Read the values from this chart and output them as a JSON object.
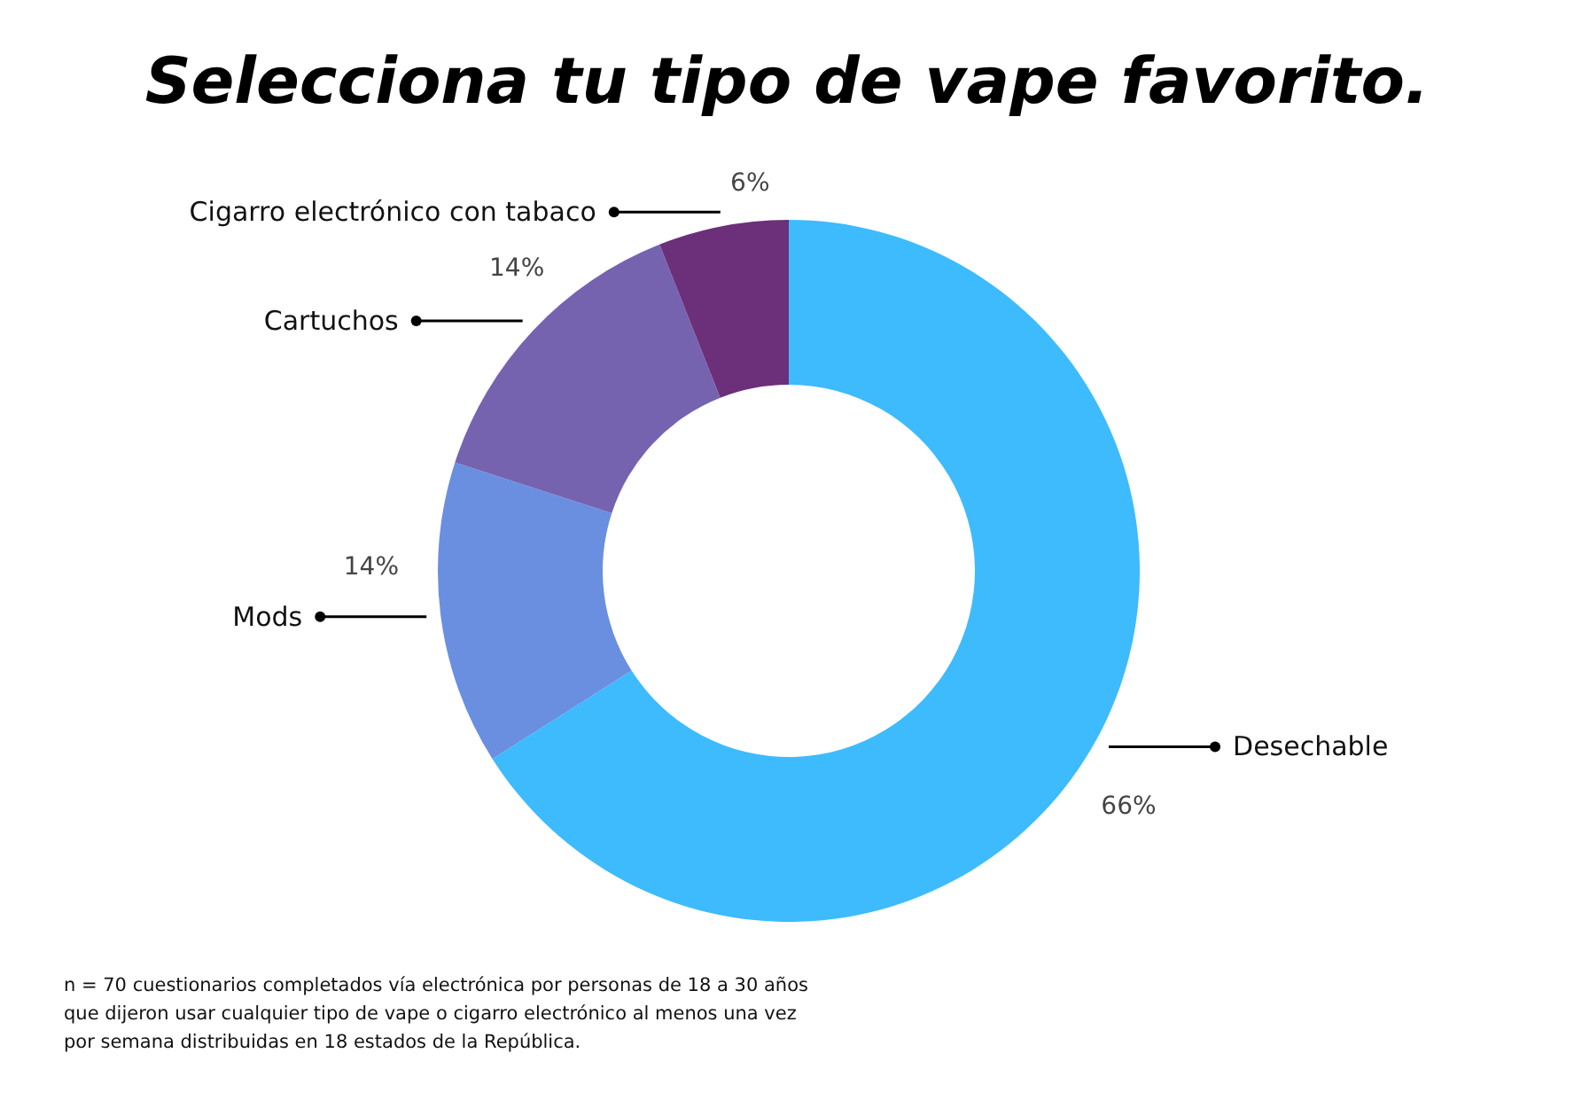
{
  "chart_data": {
    "type": "donut",
    "title": "Selecciona tu tipo de vape favorito.",
    "categories": [
      "Desechable",
      "Mods",
      "Cartuchos",
      "Cigarro electrónico con tabaco"
    ],
    "values": [
      66,
      14,
      14,
      6
    ],
    "colors": [
      "#3dbbfd",
      "#6a8fe0",
      "#7563b0",
      "#6b3079"
    ],
    "value_labels": [
      "66%",
      "14%",
      "14%",
      "6%"
    ],
    "annotations": [
      "n = 70 cuestionarios completados vía electrónica por personas de 18 a 30 años que dijeron usar cualquier tipo de vape o cigarro electrónico al menos una vez por semana distribuidas en 18 estados de la República."
    ]
  }
}
